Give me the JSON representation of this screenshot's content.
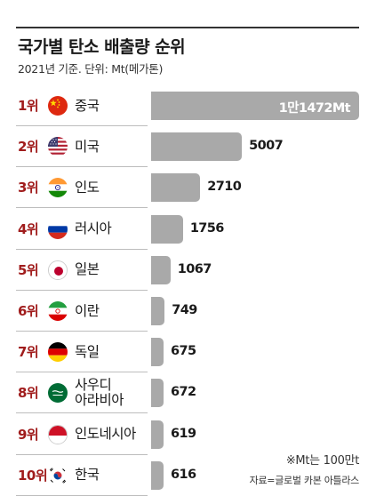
{
  "title": "국가별 탄소 배출량 순위",
  "subtitle": "2021년 기준. 단위: Mt(메가톤)",
  "note": "※Mt는 100만t",
  "source": "자료=글로벌 카본 아틀라스",
  "colors": {
    "bar": "#a9a9a9",
    "rank": "#a01c1c",
    "leader_label": "#ffffff"
  },
  "chart_data": {
    "type": "bar",
    "orientation": "horizontal",
    "categories": [
      "중국",
      "미국",
      "인도",
      "러시아",
      "일본",
      "이란",
      "독일",
      "사우디\n아라비아",
      "인도네시아",
      "한국"
    ],
    "ranks": [
      "1위",
      "2위",
      "3위",
      "4위",
      "5위",
      "6위",
      "7위",
      "8위",
      "9위",
      "10위"
    ],
    "flags": [
      "china-flag-icon",
      "usa-flag-icon",
      "india-flag-icon",
      "russia-flag-icon",
      "japan-flag-icon",
      "iran-flag-icon",
      "germany-flag-icon",
      "saudi-arabia-flag-icon",
      "indonesia-flag-icon",
      "south-korea-flag-icon"
    ],
    "values": [
      11472,
      5007,
      2710,
      1756,
      1067,
      749,
      675,
      672,
      619,
      616
    ],
    "value_labels": [
      "1만1472Mt",
      "5007",
      "2710",
      "1756",
      "1067",
      "749",
      "675",
      "672",
      "619",
      "616"
    ],
    "unit": "Mt",
    "legend": "none",
    "grid": false
  }
}
